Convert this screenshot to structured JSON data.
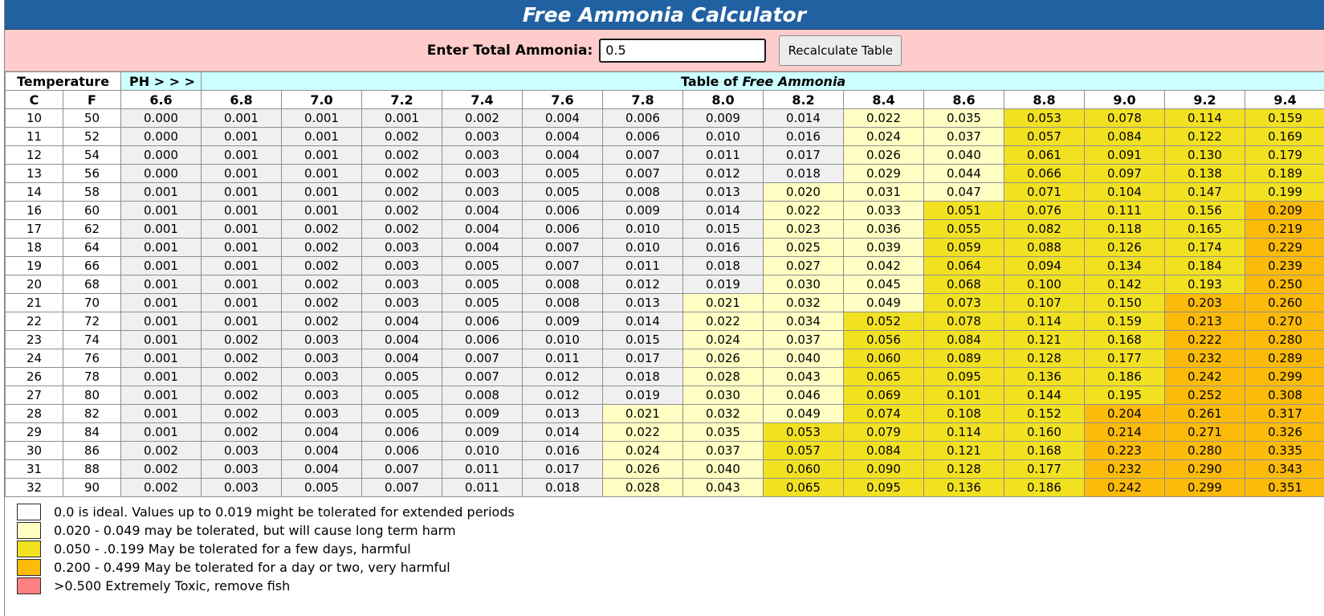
{
  "header": {
    "title": "Free Ammonia Calculator"
  },
  "input": {
    "label": "Enter Total Ammonia:",
    "value": "0.5",
    "button_label": "Recalculate Table"
  },
  "table": {
    "temperature_label": "Temperature",
    "ph_label": "PH > > >",
    "title_prefix": "Table of ",
    "title_italic": "Free Ammonia",
    "col_c": "C",
    "col_f": "F",
    "ph_values": [
      "6.6",
      "6.8",
      "7.0",
      "7.2",
      "7.4",
      "7.6",
      "7.8",
      "8.0",
      "8.2",
      "8.4",
      "8.6",
      "8.8",
      "9.0",
      "9.2",
      "9.4"
    ],
    "rows": [
      {
        "c": "10",
        "f": "50",
        "v": [
          "0.000",
          "0.001",
          "0.001",
          "0.001",
          "0.002",
          "0.004",
          "0.006",
          "0.009",
          "0.014",
          "0.022",
          "0.035",
          "0.053",
          "0.078",
          "0.114",
          "0.159"
        ]
      },
      {
        "c": "11",
        "f": "52",
        "v": [
          "0.000",
          "0.001",
          "0.001",
          "0.002",
          "0.003",
          "0.004",
          "0.006",
          "0.010",
          "0.016",
          "0.024",
          "0.037",
          "0.057",
          "0.084",
          "0.122",
          "0.169"
        ]
      },
      {
        "c": "12",
        "f": "54",
        "v": [
          "0.000",
          "0.001",
          "0.001",
          "0.002",
          "0.003",
          "0.004",
          "0.007",
          "0.011",
          "0.017",
          "0.026",
          "0.040",
          "0.061",
          "0.091",
          "0.130",
          "0.179"
        ]
      },
      {
        "c": "13",
        "f": "56",
        "v": [
          "0.000",
          "0.001",
          "0.001",
          "0.002",
          "0.003",
          "0.005",
          "0.007",
          "0.012",
          "0.018",
          "0.029",
          "0.044",
          "0.066",
          "0.097",
          "0.138",
          "0.189"
        ]
      },
      {
        "c": "14",
        "f": "58",
        "v": [
          "0.001",
          "0.001",
          "0.001",
          "0.002",
          "0.003",
          "0.005",
          "0.008",
          "0.013",
          "0.020",
          "0.031",
          "0.047",
          "0.071",
          "0.104",
          "0.147",
          "0.199"
        ]
      },
      {
        "c": "16",
        "f": "60",
        "v": [
          "0.001",
          "0.001",
          "0.001",
          "0.002",
          "0.004",
          "0.006",
          "0.009",
          "0.014",
          "0.022",
          "0.033",
          "0.051",
          "0.076",
          "0.111",
          "0.156",
          "0.209"
        ]
      },
      {
        "c": "17",
        "f": "62",
        "v": [
          "0.001",
          "0.001",
          "0.002",
          "0.002",
          "0.004",
          "0.006",
          "0.010",
          "0.015",
          "0.023",
          "0.036",
          "0.055",
          "0.082",
          "0.118",
          "0.165",
          "0.219"
        ]
      },
      {
        "c": "18",
        "f": "64",
        "v": [
          "0.001",
          "0.001",
          "0.002",
          "0.003",
          "0.004",
          "0.007",
          "0.010",
          "0.016",
          "0.025",
          "0.039",
          "0.059",
          "0.088",
          "0.126",
          "0.174",
          "0.229"
        ]
      },
      {
        "c": "19",
        "f": "66",
        "v": [
          "0.001",
          "0.001",
          "0.002",
          "0.003",
          "0.005",
          "0.007",
          "0.011",
          "0.018",
          "0.027",
          "0.042",
          "0.064",
          "0.094",
          "0.134",
          "0.184",
          "0.239"
        ]
      },
      {
        "c": "20",
        "f": "68",
        "v": [
          "0.001",
          "0.001",
          "0.002",
          "0.003",
          "0.005",
          "0.008",
          "0.012",
          "0.019",
          "0.030",
          "0.045",
          "0.068",
          "0.100",
          "0.142",
          "0.193",
          "0.250"
        ]
      },
      {
        "c": "21",
        "f": "70",
        "v": [
          "0.001",
          "0.001",
          "0.002",
          "0.003",
          "0.005",
          "0.008",
          "0.013",
          "0.021",
          "0.032",
          "0.049",
          "0.073",
          "0.107",
          "0.150",
          "0.203",
          "0.260"
        ]
      },
      {
        "c": "22",
        "f": "72",
        "v": [
          "0.001",
          "0.001",
          "0.002",
          "0.004",
          "0.006",
          "0.009",
          "0.014",
          "0.022",
          "0.034",
          "0.052",
          "0.078",
          "0.114",
          "0.159",
          "0.213",
          "0.270"
        ]
      },
      {
        "c": "23",
        "f": "74",
        "v": [
          "0.001",
          "0.002",
          "0.003",
          "0.004",
          "0.006",
          "0.010",
          "0.015",
          "0.024",
          "0.037",
          "0.056",
          "0.084",
          "0.121",
          "0.168",
          "0.222",
          "0.280"
        ]
      },
      {
        "c": "24",
        "f": "76",
        "v": [
          "0.001",
          "0.002",
          "0.003",
          "0.004",
          "0.007",
          "0.011",
          "0.017",
          "0.026",
          "0.040",
          "0.060",
          "0.089",
          "0.128",
          "0.177",
          "0.232",
          "0.289"
        ]
      },
      {
        "c": "26",
        "f": "78",
        "v": [
          "0.001",
          "0.002",
          "0.003",
          "0.005",
          "0.007",
          "0.012",
          "0.018",
          "0.028",
          "0.043",
          "0.065",
          "0.095",
          "0.136",
          "0.186",
          "0.242",
          "0.299"
        ]
      },
      {
        "c": "27",
        "f": "80",
        "v": [
          "0.001",
          "0.002",
          "0.003",
          "0.005",
          "0.008",
          "0.012",
          "0.019",
          "0.030",
          "0.046",
          "0.069",
          "0.101",
          "0.144",
          "0.195",
          "0.252",
          "0.308"
        ]
      },
      {
        "c": "28",
        "f": "82",
        "v": [
          "0.001",
          "0.002",
          "0.003",
          "0.005",
          "0.009",
          "0.013",
          "0.021",
          "0.032",
          "0.049",
          "0.074",
          "0.108",
          "0.152",
          "0.204",
          "0.261",
          "0.317"
        ]
      },
      {
        "c": "29",
        "f": "84",
        "v": [
          "0.001",
          "0.002",
          "0.004",
          "0.006",
          "0.009",
          "0.014",
          "0.022",
          "0.035",
          "0.053",
          "0.079",
          "0.114",
          "0.160",
          "0.214",
          "0.271",
          "0.326"
        ]
      },
      {
        "c": "30",
        "f": "86",
        "v": [
          "0.002",
          "0.003",
          "0.004",
          "0.006",
          "0.010",
          "0.016",
          "0.024",
          "0.037",
          "0.057",
          "0.084",
          "0.121",
          "0.168",
          "0.223",
          "0.280",
          "0.335"
        ]
      },
      {
        "c": "31",
        "f": "88",
        "v": [
          "0.002",
          "0.003",
          "0.004",
          "0.007",
          "0.011",
          "0.017",
          "0.026",
          "0.040",
          "0.060",
          "0.090",
          "0.128",
          "0.177",
          "0.232",
          "0.290",
          "0.343"
        ]
      },
      {
        "c": "32",
        "f": "90",
        "v": [
          "0.002",
          "0.003",
          "0.005",
          "0.007",
          "0.011",
          "0.018",
          "0.028",
          "0.043",
          "0.065",
          "0.095",
          "0.136",
          "0.186",
          "0.242",
          "0.299",
          "0.351"
        ]
      }
    ]
  },
  "legend": [
    {
      "color": "#ffffff",
      "text": "0.0 is ideal. Values up to 0.019 might be tolerated for extended periods"
    },
    {
      "color": "#ffffc4",
      "text": "0.020 - 0.049 may be tolerated, but will cause long term harm"
    },
    {
      "color": "#f2e121",
      "text": "0.050 - .0.199 May be tolerated for a few days, harmful"
    },
    {
      "color": "#fcbb0a",
      "text": "0.200 - 0.499 May be tolerated for a day or two, very harmful"
    },
    {
      "color": "#ff8080",
      "text": ">0.500 Extremely Toxic, remove fish"
    }
  ],
  "colors": {
    "title_bar": "#2161a2",
    "input_bar": "#ffcccc",
    "header_cyan": "#ccffff",
    "safe_cell": "#f0f0f0"
  }
}
